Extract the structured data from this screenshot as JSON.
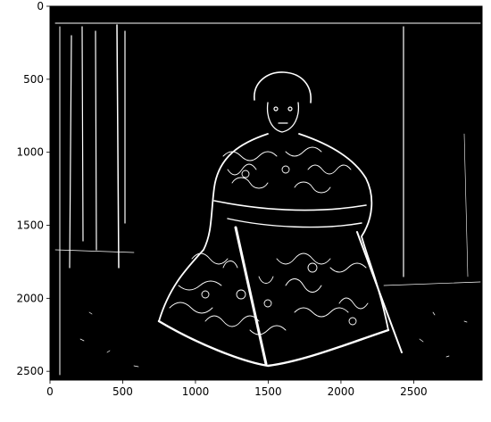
{
  "figure": {
    "background": "#ffffff",
    "image_background": "#000000",
    "edge_color": "#ffffff",
    "frame_color": "#000000",
    "description_hidden": "binary edge-detection image of a seated figure in an ornate robe"
  },
  "axes": {
    "x_ticks": [
      0,
      500,
      1000,
      1500,
      2000,
      2500
    ],
    "y_ticks": [
      0,
      500,
      1000,
      1500,
      2000,
      2500
    ],
    "x_range": [
      0,
      2970
    ],
    "y_range": [
      0,
      2560
    ]
  }
}
